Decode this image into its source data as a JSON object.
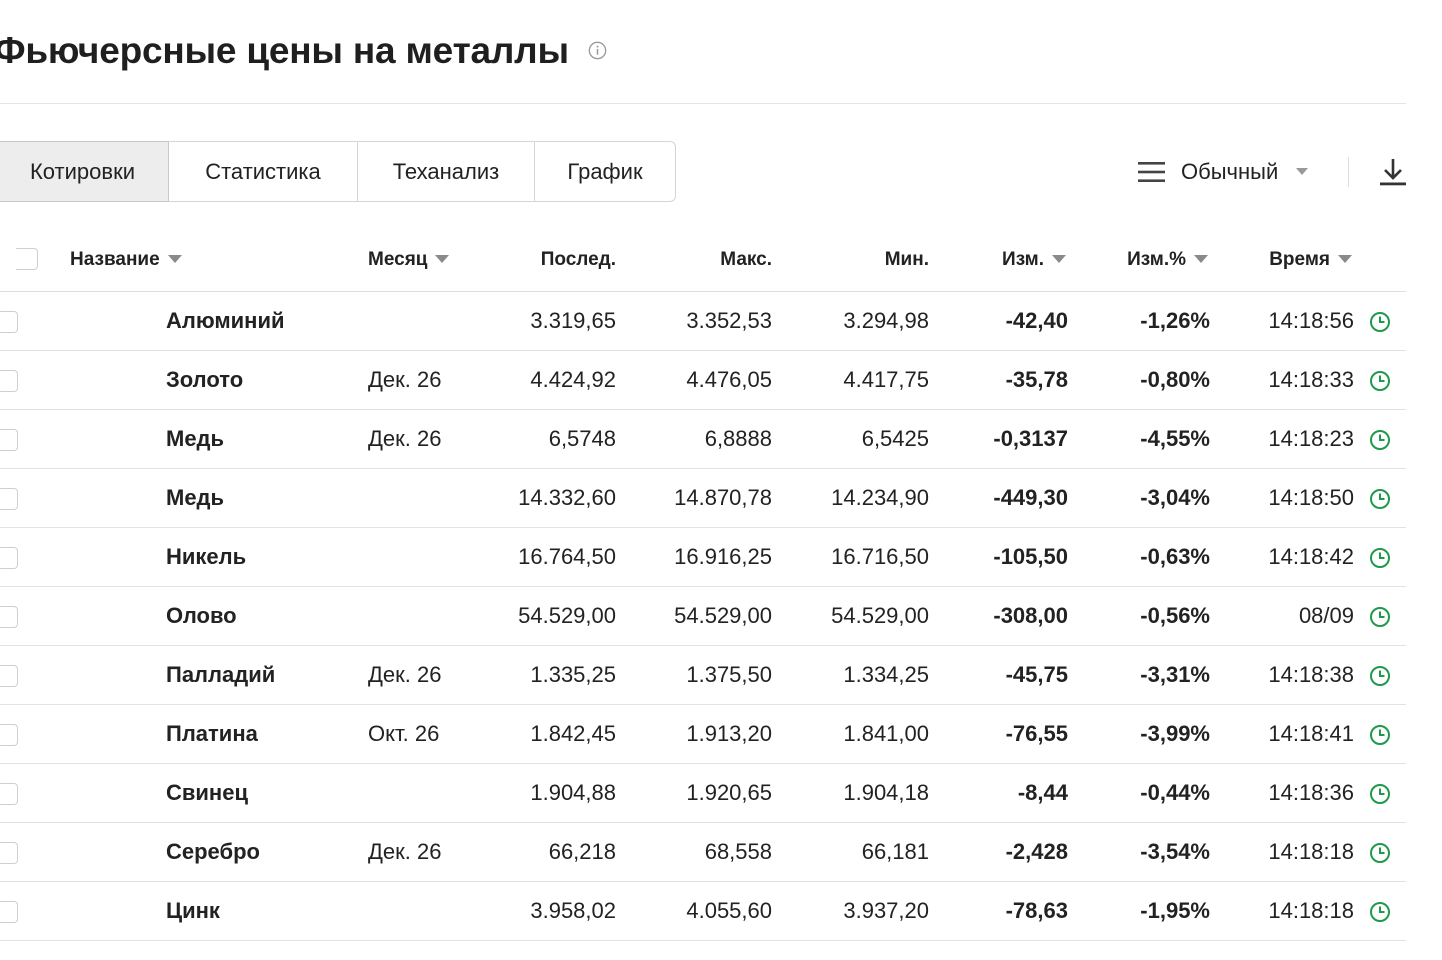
{
  "header": {
    "title": "Фьючерсные цены на металлы",
    "info_icon": "info-icon"
  },
  "tabs": [
    {
      "label": "Котировки",
      "active": true
    },
    {
      "label": "Статистика",
      "active": false
    },
    {
      "label": "Теханализ",
      "active": false
    },
    {
      "label": "График",
      "active": false
    }
  ],
  "toolbar": {
    "view_label": "Обычный",
    "view_icon": "list-icon",
    "download_icon": "download-icon"
  },
  "table": {
    "columns": {
      "name": "Название",
      "month": "Месяц",
      "last": "Послед.",
      "high": "Макс.",
      "low": "Мин.",
      "chg": "Изм.",
      "chg_pct": "Изм.%",
      "time": "Время"
    },
    "rows": [
      {
        "name": "Алюминий",
        "month": "",
        "last": "3.319,65",
        "high": "3.352,53",
        "low": "3.294,98",
        "chg": "-42,40",
        "chg_pct": "-1,26%",
        "time": "14:18:56"
      },
      {
        "name": "Золото",
        "month": "Дек. 26",
        "last": "4.424,92",
        "high": "4.476,05",
        "low": "4.417,75",
        "chg": "-35,78",
        "chg_pct": "-0,80%",
        "time": "14:18:33"
      },
      {
        "name": "Медь",
        "month": "Дек. 26",
        "last": "6,5748",
        "high": "6,8888",
        "low": "6,5425",
        "chg": "-0,3137",
        "chg_pct": "-4,55%",
        "time": "14:18:23"
      },
      {
        "name": "Медь",
        "month": "",
        "last": "14.332,60",
        "high": "14.870,78",
        "low": "14.234,90",
        "chg": "-449,30",
        "chg_pct": "-3,04%",
        "time": "14:18:50"
      },
      {
        "name": "Никель",
        "month": "",
        "last": "16.764,50",
        "high": "16.916,25",
        "low": "16.716,50",
        "chg": "-105,50",
        "chg_pct": "-0,63%",
        "time": "14:18:42"
      },
      {
        "name": "Олово",
        "month": "",
        "last": "54.529,00",
        "high": "54.529,00",
        "low": "54.529,00",
        "chg": "-308,00",
        "chg_pct": "-0,56%",
        "time": "08/09"
      },
      {
        "name": "Палладий",
        "month": "Дек. 26",
        "last": "1.335,25",
        "high": "1.375,50",
        "low": "1.334,25",
        "chg": "-45,75",
        "chg_pct": "-3,31%",
        "time": "14:18:38"
      },
      {
        "name": "Платина",
        "month": "Окт. 26",
        "last": "1.842,45",
        "high": "1.913,20",
        "low": "1.841,00",
        "chg": "-76,55",
        "chg_pct": "-3,99%",
        "time": "14:18:41"
      },
      {
        "name": "Свинец",
        "month": "",
        "last": "1.904,88",
        "high": "1.920,65",
        "low": "1.904,18",
        "chg": "-8,44",
        "chg_pct": "-0,44%",
        "time": "14:18:36"
      },
      {
        "name": "Серебро",
        "month": "Дек. 26",
        "last": "66,218",
        "high": "68,558",
        "low": "66,181",
        "chg": "-2,428",
        "chg_pct": "-3,54%",
        "time": "14:18:18"
      },
      {
        "name": "Цинк",
        "month": "",
        "last": "3.958,02",
        "high": "4.055,60",
        "low": "3.937,20",
        "chg": "-78,63",
        "chg_pct": "-1,95%",
        "time": "14:18:18"
      }
    ],
    "row_icon": "clock-icon"
  },
  "colors": {
    "negative": "#d62222",
    "clock": "#1f9a4a",
    "active_tab_bg": "#ededed"
  }
}
